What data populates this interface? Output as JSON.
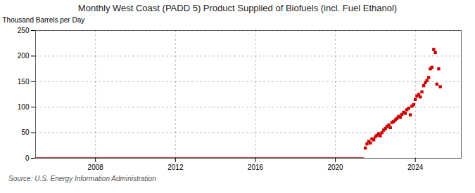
{
  "chart_data": {
    "type": "scatter",
    "title": "Monthly West Coast (PADD 5) Product Supplied of Biofuels (incl. Fuel Ethanol)",
    "ylabel": "Thousand Barrels per Day",
    "source": "Source: U.S. Energy Information Administration",
    "xlim": [
      2005.0,
      2026.3
    ],
    "xticks": [
      2008,
      2012,
      2016,
      2020,
      2024
    ],
    "ylim": [
      0,
      250
    ],
    "yticks": [
      0,
      50,
      100,
      150,
      200,
      250
    ],
    "grid": true,
    "series": [
      {
        "type": "line",
        "color": "#8b0000",
        "line_style": "solid",
        "x": [
          2005.0,
          2021.4
        ],
        "values": [
          0,
          0
        ]
      },
      {
        "type": "scatter",
        "color": "#cc0000",
        "marker": "square",
        "x": [
          2021.5,
          2021.58,
          2021.67,
          2021.75,
          2021.83,
          2021.92,
          2022.0,
          2022.08,
          2022.17,
          2022.25,
          2022.33,
          2022.42,
          2022.5,
          2022.58,
          2022.67,
          2022.75,
          2022.83,
          2022.92,
          2023.0,
          2023.08,
          2023.17,
          2023.25,
          2023.33,
          2023.42,
          2023.5,
          2023.58,
          2023.67,
          2023.75,
          2023.83,
          2023.92,
          2024.0,
          2024.08,
          2024.17,
          2024.25,
          2024.33,
          2024.42,
          2024.5,
          2024.58,
          2024.67,
          2024.75,
          2024.83,
          2024.92,
          2025.0,
          2025.08,
          2025.17,
          2025.25
        ],
        "values": [
          20,
          28,
          33,
          30,
          38,
          36,
          42,
          45,
          48,
          44,
          50,
          55,
          58,
          62,
          65,
          60,
          70,
          72,
          75,
          78,
          82,
          80,
          86,
          90,
          88,
          95,
          98,
          85,
          102,
          105,
          115,
          122,
          125,
          120,
          130,
          142,
          148,
          152,
          158,
          175,
          178,
          213,
          207,
          145,
          175,
          140
        ]
      }
    ]
  }
}
